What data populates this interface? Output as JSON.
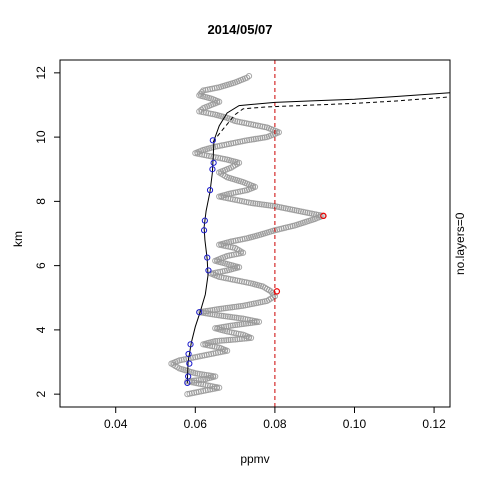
{
  "chart_data": {
    "type": "scatter",
    "title": "2014/05/07",
    "xlabel": "ppmv",
    "ylabel": "km",
    "right_label": "no.layers=0",
    "xlim": [
      0.026,
      0.124
    ],
    "ylim": [
      1.6,
      12.4
    ],
    "xticks": [
      0.04,
      0.06,
      0.08,
      0.1,
      0.12
    ],
    "xtick_labels": [
      "0.04",
      "0.06",
      "0.08",
      "0.10",
      "0.12"
    ],
    "yticks": [
      2,
      4,
      6,
      8,
      10,
      12
    ],
    "ytick_labels": [
      "2",
      "4",
      "6",
      "8",
      "10",
      "12"
    ],
    "reference_line": {
      "x": 0.08,
      "color": "#cc0000",
      "style": "dashed"
    },
    "grey_profile": [
      [
        0.058,
        2.0
      ],
      [
        0.062,
        2.1
      ],
      [
        0.066,
        2.2
      ],
      [
        0.062,
        2.3
      ],
      [
        0.058,
        2.4
      ],
      [
        0.062,
        2.45
      ],
      [
        0.065,
        2.55
      ],
      [
        0.06,
        2.65
      ],
      [
        0.056,
        2.8
      ],
      [
        0.054,
        2.95
      ],
      [
        0.056,
        3.05
      ],
      [
        0.06,
        3.15
      ],
      [
        0.064,
        3.25
      ],
      [
        0.068,
        3.35
      ],
      [
        0.066,
        3.45
      ],
      [
        0.062,
        3.55
      ],
      [
        0.065,
        3.65
      ],
      [
        0.07,
        3.7
      ],
      [
        0.074,
        3.75
      ],
      [
        0.072,
        3.85
      ],
      [
        0.068,
        3.95
      ],
      [
        0.065,
        4.05
      ],
      [
        0.07,
        4.15
      ],
      [
        0.076,
        4.25
      ],
      [
        0.072,
        4.35
      ],
      [
        0.066,
        4.45
      ],
      [
        0.061,
        4.55
      ],
      [
        0.066,
        4.65
      ],
      [
        0.072,
        4.75
      ],
      [
        0.078,
        4.9
      ],
      [
        0.08,
        5.05
      ],
      [
        0.079,
        5.2
      ],
      [
        0.077,
        5.35
      ],
      [
        0.074,
        5.45
      ],
      [
        0.07,
        5.55
      ],
      [
        0.066,
        5.65
      ],
      [
        0.064,
        5.75
      ],
      [
        0.068,
        5.85
      ],
      [
        0.071,
        5.95
      ],
      [
        0.068,
        6.05
      ],
      [
        0.065,
        6.15
      ],
      [
        0.068,
        6.3
      ],
      [
        0.072,
        6.4
      ],
      [
        0.07,
        6.55
      ],
      [
        0.066,
        6.65
      ],
      [
        0.069,
        6.75
      ],
      [
        0.073,
        6.85
      ],
      [
        0.076,
        6.95
      ],
      [
        0.08,
        7.1
      ],
      [
        0.085,
        7.25
      ],
      [
        0.09,
        7.45
      ],
      [
        0.092,
        7.55
      ],
      [
        0.086,
        7.7
      ],
      [
        0.08,
        7.85
      ],
      [
        0.074,
        7.95
      ],
      [
        0.07,
        8.05
      ],
      [
        0.066,
        8.15
      ],
      [
        0.069,
        8.25
      ],
      [
        0.073,
        8.35
      ],
      [
        0.075,
        8.45
      ],
      [
        0.072,
        8.6
      ],
      [
        0.068,
        8.75
      ],
      [
        0.066,
        8.9
      ],
      [
        0.069,
        9.05
      ],
      [
        0.071,
        9.2
      ],
      [
        0.068,
        9.3
      ],
      [
        0.064,
        9.4
      ],
      [
        0.06,
        9.5
      ],
      [
        0.062,
        9.6
      ],
      [
        0.065,
        9.7
      ],
      [
        0.069,
        9.8
      ],
      [
        0.073,
        9.9
      ],
      [
        0.078,
        10.0
      ],
      [
        0.081,
        10.15
      ],
      [
        0.078,
        10.3
      ],
      [
        0.074,
        10.4
      ],
      [
        0.07,
        10.5
      ],
      [
        0.068,
        10.6
      ],
      [
        0.065,
        10.7
      ],
      [
        0.061,
        10.8
      ],
      [
        0.062,
        10.9
      ],
      [
        0.064,
        11.0
      ],
      [
        0.066,
        11.1
      ],
      [
        0.064,
        11.2
      ],
      [
        0.061,
        11.3
      ],
      [
        0.062,
        11.45
      ],
      [
        0.066,
        11.55
      ],
      [
        0.07,
        11.7
      ],
      [
        0.073,
        11.85
      ],
      [
        0.074,
        11.95
      ]
    ],
    "red_points": [
      {
        "x": 0.0922,
        "y": 7.55
      },
      {
        "x": 0.0805,
        "y": 5.2
      }
    ],
    "blue_points": [
      {
        "x": 0.058,
        "y": 2.35
      },
      {
        "x": 0.0582,
        "y": 2.55
      },
      {
        "x": 0.0585,
        "y": 2.95
      },
      {
        "x": 0.0583,
        "y": 3.25
      },
      {
        "x": 0.0588,
        "y": 3.55
      },
      {
        "x": 0.061,
        "y": 4.55
      },
      {
        "x": 0.0633,
        "y": 5.85
      },
      {
        "x": 0.063,
        "y": 6.25
      },
      {
        "x": 0.0622,
        "y": 7.1
      },
      {
        "x": 0.0624,
        "y": 7.4
      },
      {
        "x": 0.0637,
        "y": 8.35
      },
      {
        "x": 0.0643,
        "y": 9.0
      },
      {
        "x": 0.0646,
        "y": 9.2
      },
      {
        "x": 0.0644,
        "y": 9.9
      }
    ],
    "solid_curve": [
      [
        0.058,
        2.35
      ],
      [
        0.0582,
        3.0
      ],
      [
        0.059,
        3.6
      ],
      [
        0.06,
        4.1
      ],
      [
        0.0612,
        4.55
      ],
      [
        0.0625,
        5.1
      ],
      [
        0.0632,
        5.7
      ],
      [
        0.063,
        6.2
      ],
      [
        0.0624,
        6.8
      ],
      [
        0.0622,
        7.2
      ],
      [
        0.0627,
        7.7
      ],
      [
        0.0637,
        8.3
      ],
      [
        0.0643,
        8.9
      ],
      [
        0.0645,
        9.4
      ],
      [
        0.0647,
        9.9
      ],
      [
        0.066,
        10.35
      ],
      [
        0.068,
        10.75
      ],
      [
        0.071,
        10.98
      ],
      [
        0.08,
        11.08
      ],
      [
        0.09,
        11.13
      ],
      [
        0.1,
        11.18
      ],
      [
        0.11,
        11.26
      ],
      [
        0.124,
        11.38
      ]
    ],
    "dashed_curve": [
      [
        0.0645,
        9.85
      ],
      [
        0.066,
        10.1
      ],
      [
        0.068,
        10.4
      ],
      [
        0.07,
        10.7
      ],
      [
        0.072,
        10.88
      ],
      [
        0.078,
        10.94
      ],
      [
        0.09,
        11.0
      ],
      [
        0.1,
        11.05
      ],
      [
        0.11,
        11.12
      ],
      [
        0.124,
        11.25
      ]
    ],
    "grid": false,
    "legend": "none"
  }
}
